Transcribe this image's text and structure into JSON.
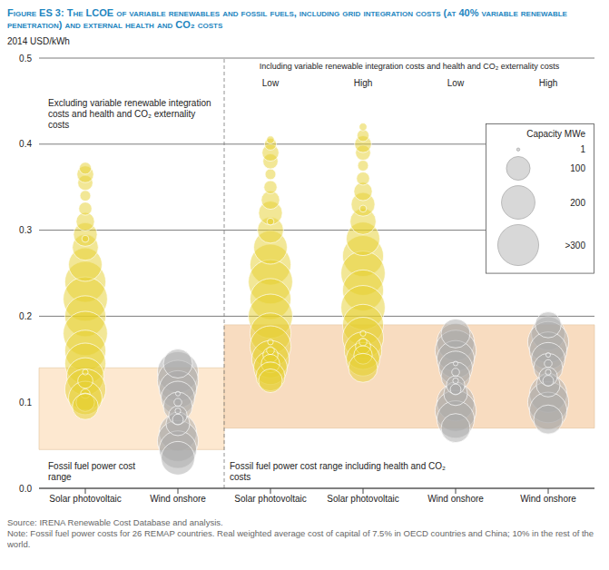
{
  "chart_data": {
    "type": "scatter",
    "title": "Figure ES 3: The LCOE of variable renewables and fossil fuels, including grid integration costs (at 40% variable renewable penetration) and external health and CO₂ costs",
    "y_label": "2014 USD/kWh",
    "ylim": [
      0,
      0.5
    ],
    "yticks": [
      {
        "value": 0,
        "label": "0.0"
      },
      0.1,
      0.2,
      0.3,
      0.4,
      0.5
    ],
    "grid": true,
    "size_legend": {
      "title": "Capacity MWe",
      "values": [
        1,
        100,
        200,
        {
          "value": 300,
          "label": ">300"
        }
      ]
    },
    "panels": [
      {
        "title": "Excluding variable renewable integration costs and health and CO₂ externality costs",
        "band": {
          "range": [
            0.045,
            0.14
          ],
          "label": "Fossil fuel power cost range",
          "color": "#fde8d0"
        },
        "columns": [
          {
            "category": "Solar photovoltaic",
            "color": "#e5cf2e",
            "points": [
              {
                "y": 0.24,
                "capacity": 300
              },
              {
                "y": 0.22,
                "capacity": 350
              },
              {
                "y": 0.2,
                "capacity": 300
              },
              {
                "y": 0.18,
                "capacity": 350
              },
              {
                "y": 0.16,
                "capacity": 300
              },
              {
                "y": 0.145,
                "capacity": 300
              },
              {
                "y": 0.13,
                "capacity": 250
              },
              {
                "y": 0.115,
                "capacity": 300
              },
              {
                "y": 0.105,
                "capacity": 200
              },
              {
                "y": 0.26,
                "capacity": 200
              },
              {
                "y": 0.28,
                "capacity": 120
              },
              {
                "y": 0.295,
                "capacity": 100
              },
              {
                "y": 0.31,
                "capacity": 60
              },
              {
                "y": 0.325,
                "capacity": 30
              },
              {
                "y": 0.34,
                "capacity": 20
              },
              {
                "y": 0.355,
                "capacity": 40
              },
              {
                "y": 0.365,
                "capacity": 50
              },
              {
                "y": 0.372,
                "capacity": 25
              },
              {
                "y": 0.125,
                "capacity": 40
              },
              {
                "y": 0.11,
                "capacity": 15
              },
              {
                "y": 0.1,
                "capacity": 60
              },
              {
                "y": 0.095,
                "capacity": 120
              },
              {
                "y": 0.135,
                "capacity": 5
              },
              {
                "y": 0.29,
                "capacity": 8
              }
            ]
          },
          {
            "category": "Wind onshore",
            "color": "#a9a9a9",
            "points": [
              {
                "y": 0.135,
                "capacity": 300
              },
              {
                "y": 0.125,
                "capacity": 300
              },
              {
                "y": 0.115,
                "capacity": 250
              },
              {
                "y": 0.105,
                "capacity": 200
              },
              {
                "y": 0.095,
                "capacity": 150
              },
              {
                "y": 0.065,
                "capacity": 250
              },
              {
                "y": 0.055,
                "capacity": 300
              },
              {
                "y": 0.045,
                "capacity": 250
              },
              {
                "y": 0.035,
                "capacity": 200
              },
              {
                "y": 0.075,
                "capacity": 100
              },
              {
                "y": 0.085,
                "capacity": 60
              },
              {
                "y": 0.08,
                "capacity": 20
              },
              {
                "y": 0.09,
                "capacity": 5
              },
              {
                "y": 0.1,
                "capacity": 10
              },
              {
                "y": 0.11,
                "capacity": 3
              },
              {
                "y": 0.145,
                "capacity": 150
              }
            ]
          }
        ]
      },
      {
        "title": "Including variable renewable integration costs and health and CO₂ externality costs",
        "band": {
          "range": [
            0.07,
            0.19
          ],
          "label": "Fossil fuel power cost range including health and CO₂ costs",
          "color": "#f8dcc0"
        },
        "columns": [
          {
            "category": "Solar photovoltaic",
            "header": "Low",
            "color": "#e5cf2e",
            "points": [
              {
                "y": 0.26,
                "capacity": 300
              },
              {
                "y": 0.24,
                "capacity": 350
              },
              {
                "y": 0.22,
                "capacity": 300
              },
              {
                "y": 0.2,
                "capacity": 350
              },
              {
                "y": 0.18,
                "capacity": 300
              },
              {
                "y": 0.165,
                "capacity": 300
              },
              {
                "y": 0.15,
                "capacity": 250
              },
              {
                "y": 0.14,
                "capacity": 200
              },
              {
                "y": 0.28,
                "capacity": 200
              },
              {
                "y": 0.3,
                "capacity": 120
              },
              {
                "y": 0.32,
                "capacity": 100
              },
              {
                "y": 0.335,
                "capacity": 60
              },
              {
                "y": 0.35,
                "capacity": 30
              },
              {
                "y": 0.365,
                "capacity": 20
              },
              {
                "y": 0.38,
                "capacity": 40
              },
              {
                "y": 0.39,
                "capacity": 50
              },
              {
                "y": 0.4,
                "capacity": 25
              },
              {
                "y": 0.405,
                "capacity": 10
              },
              {
                "y": 0.155,
                "capacity": 40
              },
              {
                "y": 0.16,
                "capacity": 10
              },
              {
                "y": 0.145,
                "capacity": 60
              },
              {
                "y": 0.13,
                "capacity": 150
              },
              {
                "y": 0.31,
                "capacity": 8
              },
              {
                "y": 0.17,
                "capacity": 5
              },
              {
                "y": 0.125,
                "capacity": 100
              }
            ]
          },
          {
            "category": "Solar photovoltaic",
            "header": "High",
            "color": "#e5cf2e",
            "points": [
              {
                "y": 0.27,
                "capacity": 300
              },
              {
                "y": 0.25,
                "capacity": 350
              },
              {
                "y": 0.23,
                "capacity": 300
              },
              {
                "y": 0.21,
                "capacity": 350
              },
              {
                "y": 0.19,
                "capacity": 300
              },
              {
                "y": 0.175,
                "capacity": 300
              },
              {
                "y": 0.16,
                "capacity": 250
              },
              {
                "y": 0.15,
                "capacity": 200
              },
              {
                "y": 0.29,
                "capacity": 200
              },
              {
                "y": 0.31,
                "capacity": 120
              },
              {
                "y": 0.33,
                "capacity": 100
              },
              {
                "y": 0.345,
                "capacity": 60
              },
              {
                "y": 0.36,
                "capacity": 30
              },
              {
                "y": 0.375,
                "capacity": 20
              },
              {
                "y": 0.39,
                "capacity": 40
              },
              {
                "y": 0.4,
                "capacity": 50
              },
              {
                "y": 0.41,
                "capacity": 25
              },
              {
                "y": 0.42,
                "capacity": 10
              },
              {
                "y": 0.165,
                "capacity": 40
              },
              {
                "y": 0.17,
                "capacity": 10
              },
              {
                "y": 0.155,
                "capacity": 60
              },
              {
                "y": 0.14,
                "capacity": 150
              },
              {
                "y": 0.325,
                "capacity": 8
              },
              {
                "y": 0.18,
                "capacity": 5
              }
            ]
          },
          {
            "category": "Wind onshore",
            "header": "Low",
            "color": "#a9a9a9",
            "points": [
              {
                "y": 0.17,
                "capacity": 250
              },
              {
                "y": 0.16,
                "capacity": 300
              },
              {
                "y": 0.15,
                "capacity": 250
              },
              {
                "y": 0.14,
                "capacity": 200
              },
              {
                "y": 0.13,
                "capacity": 150
              },
              {
                "y": 0.1,
                "capacity": 250
              },
              {
                "y": 0.09,
                "capacity": 300
              },
              {
                "y": 0.08,
                "capacity": 250
              },
              {
                "y": 0.07,
                "capacity": 150
              },
              {
                "y": 0.11,
                "capacity": 100
              },
              {
                "y": 0.12,
                "capacity": 60
              },
              {
                "y": 0.115,
                "capacity": 20
              },
              {
                "y": 0.125,
                "capacity": 5
              },
              {
                "y": 0.135,
                "capacity": 10
              },
              {
                "y": 0.145,
                "capacity": 3
              },
              {
                "y": 0.18,
                "capacity": 150
              }
            ]
          },
          {
            "category": "Wind onshore",
            "header": "High",
            "color": "#a9a9a9",
            "points": [
              {
                "y": 0.18,
                "capacity": 200
              },
              {
                "y": 0.17,
                "capacity": 300
              },
              {
                "y": 0.16,
                "capacity": 250
              },
              {
                "y": 0.15,
                "capacity": 200
              },
              {
                "y": 0.14,
                "capacity": 150
              },
              {
                "y": 0.11,
                "capacity": 250
              },
              {
                "y": 0.1,
                "capacity": 300
              },
              {
                "y": 0.09,
                "capacity": 250
              },
              {
                "y": 0.08,
                "capacity": 150
              },
              {
                "y": 0.12,
                "capacity": 100
              },
              {
                "y": 0.13,
                "capacity": 60
              },
              {
                "y": 0.125,
                "capacity": 20
              },
              {
                "y": 0.135,
                "capacity": 5
              },
              {
                "y": 0.145,
                "capacity": 10
              },
              {
                "y": 0.155,
                "capacity": 3
              },
              {
                "y": 0.19,
                "capacity": 120
              }
            ]
          }
        ]
      }
    ],
    "source": "Source: IRENA Renewable Cost Database and analysis.",
    "note": "Note: Fossil fuel power costs for 26 REMAP countries. Real weighted average cost of capital of 7.5% in OECD countries and China; 10% in the rest of the world."
  }
}
